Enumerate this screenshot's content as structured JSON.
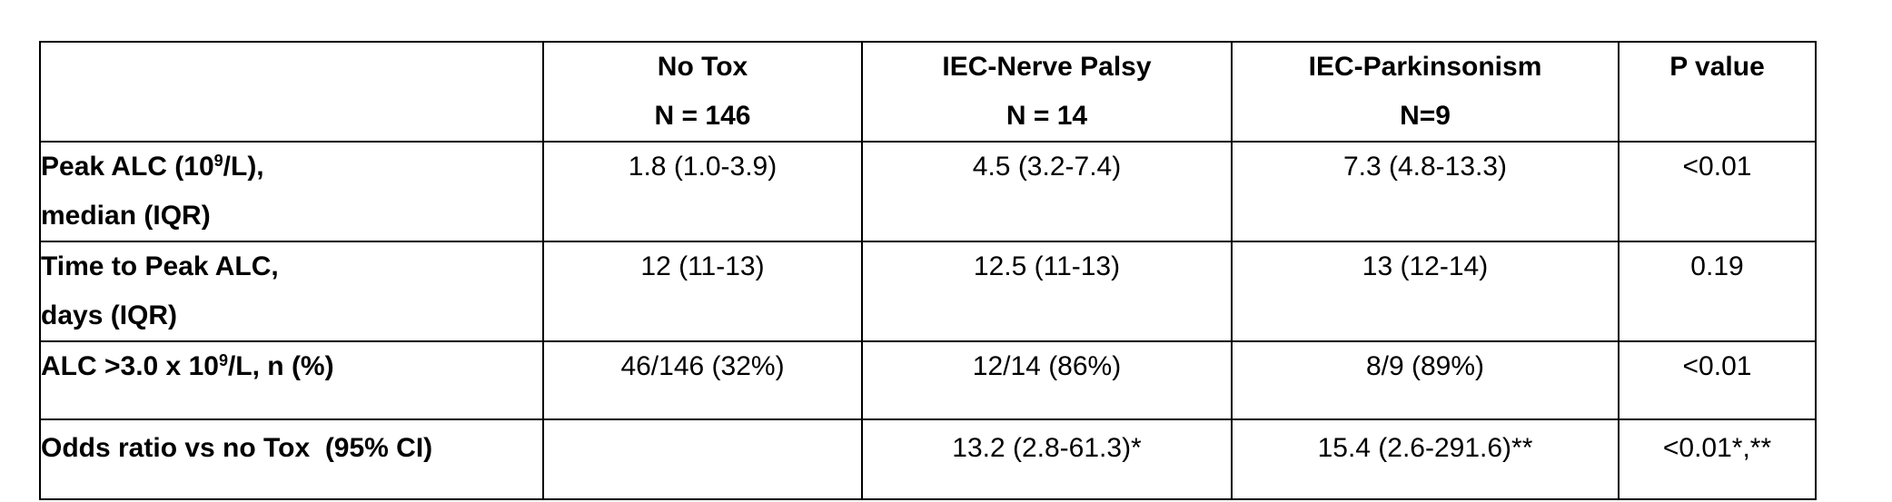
{
  "table": {
    "columns": [
      {
        "line1": "",
        "line2": ""
      },
      {
        "line1": "No Tox",
        "line2": "N = 146"
      },
      {
        "line1": "IEC-Nerve Palsy",
        "line2": "N = 14"
      },
      {
        "line1": "IEC-Parkinsonism",
        "line2": "N=9"
      },
      {
        "line1": "P value",
        "line2": ""
      }
    ],
    "rows": [
      {
        "label_pre": "Peak ALC (10",
        "label_sup": "9",
        "label_post": "/L),",
        "label_line2": "median (IQR)",
        "values": [
          "1.8 (1.0-3.9)",
          "4.5 (3.2-7.4)",
          "7.3 (4.8-13.3)",
          "<0.01"
        ]
      },
      {
        "label_line1": "Time to Peak ALC,",
        "label_line2": "days (IQR)",
        "values": [
          "12 (11-13)",
          "12.5 (11-13)",
          "13 (12-14)",
          "0.19"
        ]
      },
      {
        "label_pre": "ALC >3.0 x 10",
        "label_sup": "9",
        "label_post": "/L, n (%)",
        "values": [
          "46/146 (32%)",
          "12/14 (86%)",
          "8/9 (89%)",
          "<0.01"
        ]
      },
      {
        "label_line1": "Odds ratio vs no Tox  (95% CI)",
        "values": [
          "",
          "13.2 (2.8-61.3)*",
          "15.4 (2.6-291.6)**",
          "<0.01*,**"
        ]
      }
    ]
  }
}
